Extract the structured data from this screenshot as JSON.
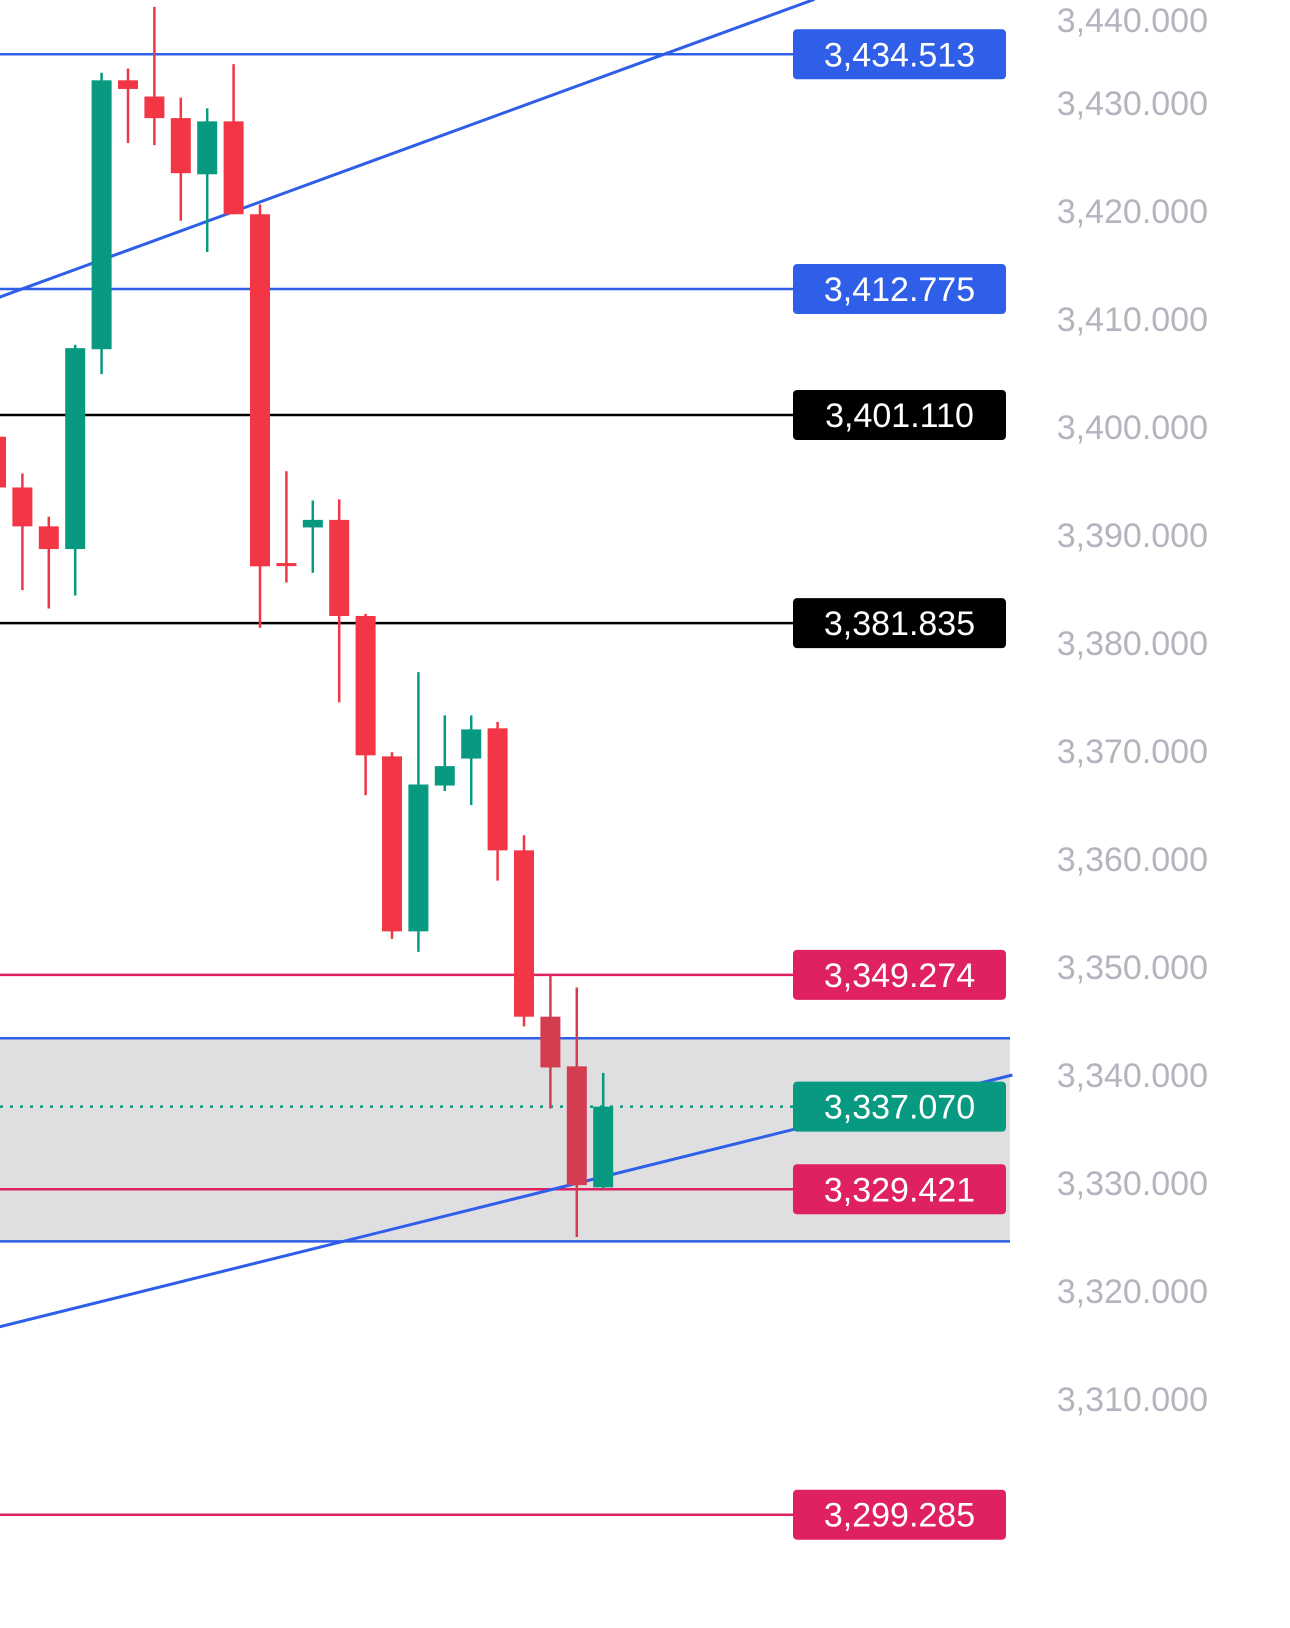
{
  "chart_data": {
    "type": "candlestick",
    "title": "",
    "xlabel": "",
    "ylabel": "",
    "ylim": [
      3297,
      3440
    ],
    "y_ticks": [
      "3,440.000",
      "3,430.000",
      "3,420.000",
      "3,410.000",
      "3,400.000",
      "3,390.000",
      "3,380.000",
      "3,370.000",
      "3,360.000",
      "3,350.000",
      "3,340.000",
      "3,330.000",
      "3,320.000",
      "3,310.000"
    ],
    "y_tick_values": [
      3440,
      3430,
      3420,
      3410,
      3400,
      3390,
      3380,
      3370,
      3360,
      3350,
      3340,
      3330,
      3320,
      3310
    ],
    "colors": {
      "up": "#089981",
      "down": "#f23645",
      "down_in_zone": "#d43c4f",
      "blue": "#2f5fe8",
      "red_level": "#e0215f",
      "black": "#000000",
      "tick_text": "#b2b5be",
      "zone": "#dfdfe2"
    },
    "candles": [
      {
        "o": 3399.1,
        "h": 3399.5,
        "l": 3393.0,
        "c": 3394.4
      },
      {
        "o": 3394.4,
        "h": 3395.7,
        "l": 3384.9,
        "c": 3390.8
      },
      {
        "o": 3390.8,
        "h": 3391.7,
        "l": 3383.2,
        "c": 3388.7
      },
      {
        "o": 3388.7,
        "h": 3407.6,
        "l": 3384.4,
        "c": 3407.3
      },
      {
        "o": 3407.2,
        "h": 3432.8,
        "l": 3404.9,
        "c": 3432.1
      },
      {
        "o": 3432.1,
        "h": 3433.2,
        "l": 3426.3,
        "c": 3431.3
      },
      {
        "o": 3430.6,
        "h": 3438.9,
        "l": 3426.1,
        "c": 3428.6
      },
      {
        "o": 3428.6,
        "h": 3430.5,
        "l": 3419.1,
        "c": 3423.5
      },
      {
        "o": 3423.4,
        "h": 3429.5,
        "l": 3416.2,
        "c": 3428.3
      },
      {
        "o": 3428.3,
        "h": 3433.6,
        "l": 3419.7,
        "c": 3419.7
      },
      {
        "o": 3419.7,
        "h": 3420.6,
        "l": 3381.4,
        "c": 3387.1
      },
      {
        "o": 3387.4,
        "h": 3395.9,
        "l": 3385.6,
        "c": 3387.2
      },
      {
        "o": 3390.7,
        "h": 3393.2,
        "l": 3386.5,
        "c": 3391.4
      },
      {
        "o": 3391.4,
        "h": 3393.3,
        "l": 3374.5,
        "c": 3382.5
      },
      {
        "o": 3382.5,
        "h": 3382.7,
        "l": 3365.9,
        "c": 3369.6
      },
      {
        "o": 3369.5,
        "h": 3369.9,
        "l": 3352.6,
        "c": 3353.3
      },
      {
        "o": 3353.3,
        "h": 3377.3,
        "l": 3351.4,
        "c": 3366.9
      },
      {
        "o": 3366.8,
        "h": 3373.3,
        "l": 3366.3,
        "c": 3368.6
      },
      {
        "o": 3369.3,
        "h": 3373.3,
        "l": 3365.0,
        "c": 3372.0
      },
      {
        "o": 3372.1,
        "h": 3372.7,
        "l": 3358.0,
        "c": 3360.8
      },
      {
        "o": 3360.8,
        "h": 3362.2,
        "l": 3344.5,
        "c": 3345.4
      },
      {
        "o": 3345.4,
        "h": 3349.2,
        "l": 3336.9,
        "c": 3340.7
      },
      {
        "o": 3340.8,
        "h": 3348.1,
        "l": 3325.0,
        "c": 3329.8
      },
      {
        "o": 3329.6,
        "h": 3340.2,
        "l": 3329.5,
        "c": 3337.07
      }
    ],
    "zone": {
      "top": 3343.4,
      "bottom": 3324.6
    },
    "trendlines": [
      {
        "name": "upper-trendline",
        "from": [
          0,
          3411.9
        ],
        "to": [
          31,
          3439.6
        ]
      },
      {
        "name": "lower-trendline",
        "from": [
          0,
          3316.6
        ],
        "to": [
          38.5,
          3340.0
        ]
      }
    ],
    "levels": [
      {
        "name": "level-3434-513",
        "price": 3434.513,
        "label": "3,434.513",
        "color": "#2f5fe8"
      },
      {
        "name": "level-3412-775",
        "price": 3412.775,
        "label": "3,412.775",
        "color": "#2f5fe8"
      },
      {
        "name": "level-3401-110",
        "price": 3401.11,
        "label": "3,401.110",
        "color": "#000000"
      },
      {
        "name": "level-3381-835",
        "price": 3381.835,
        "label": "3,381.835",
        "color": "#000000"
      },
      {
        "name": "level-3349-274",
        "price": 3349.274,
        "label": "3,349.274",
        "color": "#e0215f"
      },
      {
        "name": "level-3329-421",
        "price": 3329.421,
        "label": "3,329.421",
        "color": "#e0215f"
      },
      {
        "name": "level-3299-285",
        "price": 3299.285,
        "label": "3,299.285",
        "color": "#e0215f"
      }
    ],
    "current_price": {
      "price": 3337.07,
      "label": "3,337.070",
      "color": "#089981"
    }
  }
}
